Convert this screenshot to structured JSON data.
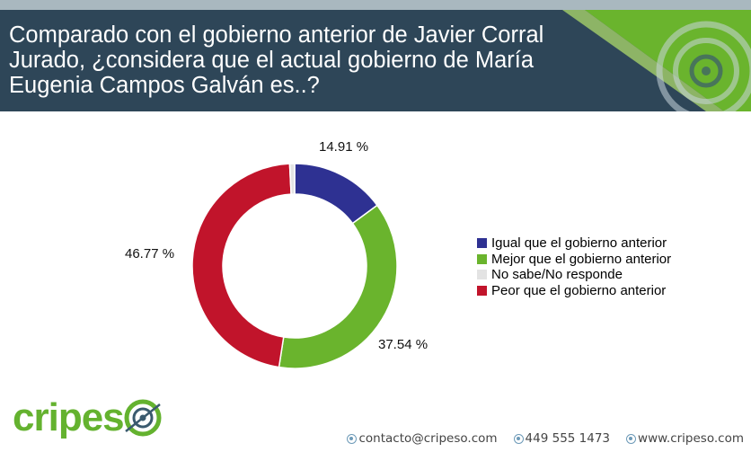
{
  "header": {
    "title": "Comparado con el gobierno anterior de Javier Corral\nJurado, ¿considera que el actual gobierno de María\nEugenia Campos Galván es..?"
  },
  "colors": {
    "header_bg": "#2e4658",
    "igual": "#2e3192",
    "mejor": "#6ab42d",
    "nosabe": "#e3e3e3",
    "peor": "#c1142b",
    "brand": "#64b22f"
  },
  "chart_data": {
    "type": "pie",
    "donut": true,
    "categories": [
      "Igual que el gobierno anterior",
      "Mejor que el gobierno anterior",
      "No sabe/No responde",
      "Peor que el gobierno anterior"
    ],
    "values": [
      14.91,
      37.54,
      0.78,
      46.77
    ],
    "data_labels": [
      "14.91 %",
      "37.54 %",
      "",
      "46.77 %"
    ],
    "legend_position": "right"
  },
  "legend": {
    "items": [
      {
        "label": "Igual que el gobierno anterior"
      },
      {
        "label": "Mejor que el gobierno anterior"
      },
      {
        "label": "No sabe/No responde"
      },
      {
        "label": "Peor que el gobierno anterior"
      }
    ]
  },
  "footer": {
    "logo_text": "cripes",
    "email": "contacto@cripeso.com",
    "phone": "449 555 1473",
    "website": "www.cripeso.com"
  }
}
